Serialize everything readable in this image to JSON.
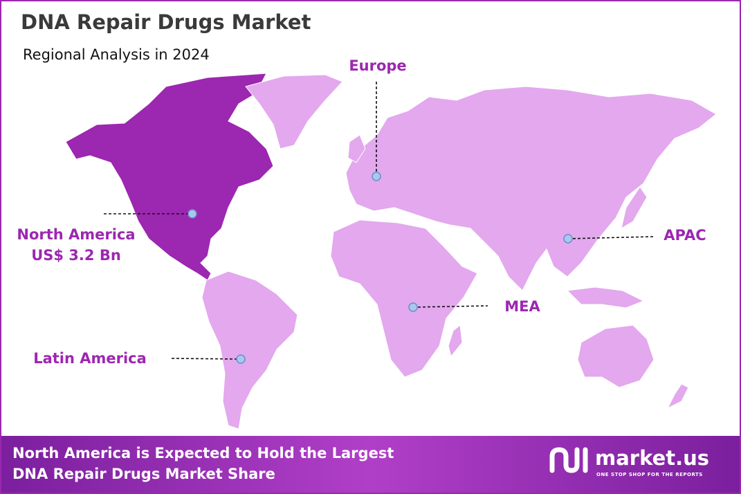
{
  "header": {
    "title": "DNA Repair Drugs Market",
    "subtitle": "Regional Analysis in 2024"
  },
  "regions": [
    {
      "name": "North America",
      "value_label": "US$ 3.2 Bn"
    },
    {
      "name": "Europe"
    },
    {
      "name": "APAC"
    },
    {
      "name": "MEA"
    },
    {
      "name": "Latin America"
    }
  ],
  "footer": {
    "lines": [
      "North America is Expected to Hold the Largest",
      "DNA Repair Drugs Market Share"
    ]
  },
  "logo": {
    "name": "market.us",
    "tagline": "ONE STOP SHOP FOR THE REPORTS"
  }
}
